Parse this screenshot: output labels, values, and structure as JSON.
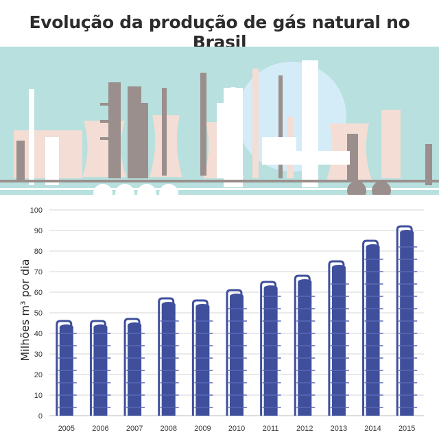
{
  "chart_data": {
    "type": "bar",
    "title": "Evolução da produção de gás natural no Brasil",
    "ylabel": "Milhões m³ por dia",
    "xlabel": "",
    "categories": [
      "2005",
      "2006",
      "2007",
      "2008",
      "2009",
      "2010",
      "2011",
      "2012",
      "2013",
      "2014",
      "2015"
    ],
    "values": [
      43,
      43,
      44,
      54,
      53,
      58,
      62,
      65,
      72,
      82,
      89
    ],
    "ylim": [
      0,
      100
    ],
    "yticks": [
      0,
      10,
      20,
      30,
      40,
      50,
      60,
      70,
      80,
      90,
      100
    ],
    "grid": true,
    "bar_color": "#3f4f9c",
    "background_colors": {
      "sky": "#b7e0de",
      "sun": "#d3ecf8",
      "towers": "#f3ddd4",
      "structures": "#9a8f8c",
      "white_structures": "#ffffff"
    }
  }
}
